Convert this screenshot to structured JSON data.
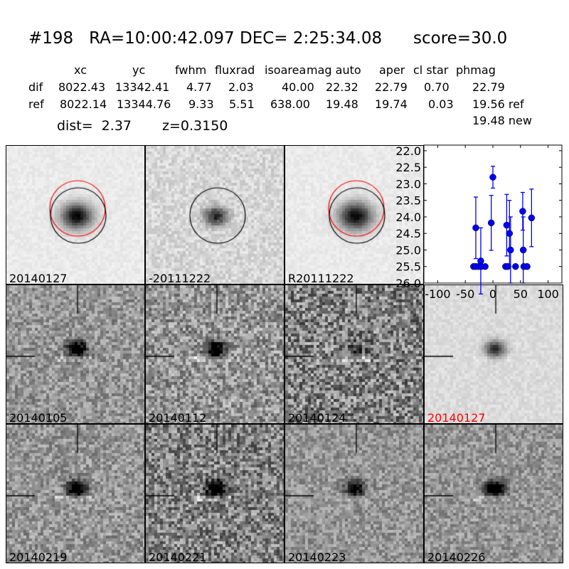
{
  "title": {
    "id": "#198",
    "coords": "RA=10:00:42.097 DEC= 2:25:34.08",
    "score": "score=30.0"
  },
  "table": {
    "headers": [
      "xc",
      "yc",
      "fwhm",
      "fluxrad",
      "isoarea",
      "mag auto",
      "aper",
      "cl star",
      "phmag"
    ],
    "rows": [
      {
        "label": "dif",
        "values": [
          "8022.43",
          "13342.41",
          "4.77",
          "2.03",
          "40.00",
          "22.32",
          "22.79",
          "0.70",
          "22.79"
        ]
      },
      {
        "label": "ref",
        "values": [
          "8022.14",
          "13344.76",
          "9.33",
          "5.51",
          "638.00",
          "19.48",
          "19.74",
          "0.03",
          "19.56 ref"
        ]
      }
    ],
    "extra": "19.48 new",
    "dist": "dist=  2.37",
    "z": "z=0.3150"
  },
  "cutouts": [
    {
      "label": "20140127",
      "color": "#000000"
    },
    {
      "label": "-20111222",
      "color": "#000000"
    },
    {
      "label": "R20111222",
      "color": "#000000"
    },
    {
      "label": "20140105",
      "color": "#000000"
    },
    {
      "label": "20140112",
      "color": "#000000"
    },
    {
      "label": "20140124",
      "color": "#000000"
    },
    {
      "label": "20140127",
      "color": "#ff0000"
    },
    {
      "label": "20140219",
      "color": "#000000"
    },
    {
      "label": "20140221",
      "color": "#000000"
    },
    {
      "label": "20140223",
      "color": "#000000"
    },
    {
      "label": "20140226",
      "color": "#000000"
    }
  ],
  "chart_data": {
    "type": "scatter",
    "errorbars": true,
    "color": "#0000ff",
    "xlim": [
      -125,
      125
    ],
    "ylim": [
      26.0,
      21.83
    ],
    "y_inverted": true,
    "xticks": [
      "-100",
      "-50",
      "0",
      "50",
      "100"
    ],
    "yticks": [
      "22.0",
      "22.5",
      "23.0",
      "23.5",
      "24.0",
      "24.5",
      "25.0",
      "25.5",
      "26.0"
    ],
    "points": [
      {
        "x": -31,
        "y": 24.33,
        "err": 0.93
      },
      {
        "x": -22,
        "y": 25.33,
        "err": 1.0
      },
      {
        "x": -35,
        "y": 25.5,
        "err": 0.05
      },
      {
        "x": -31,
        "y": 25.5,
        "err": 0.05
      },
      {
        "x": -26,
        "y": 25.5,
        "err": 0.05
      },
      {
        "x": -21,
        "y": 25.5,
        "err": 0.05
      },
      {
        "x": -14,
        "y": 25.5,
        "err": 0.05
      },
      {
        "x": 0,
        "y": 22.8,
        "err": 0.33
      },
      {
        "x": -3,
        "y": 24.18,
        "err": 0.83
      },
      {
        "x": 25,
        "y": 24.25,
        "err": 0.93
      },
      {
        "x": 30,
        "y": 24.5,
        "err": 1.0
      },
      {
        "x": 32,
        "y": 25.0,
        "err": 1.0
      },
      {
        "x": 23,
        "y": 25.5,
        "err": 0.05
      },
      {
        "x": 27,
        "y": 25.5,
        "err": 0.05
      },
      {
        "x": 41,
        "y": 25.5,
        "err": 0.05
      },
      {
        "x": 54,
        "y": 23.83,
        "err": 0.57
      },
      {
        "x": 55,
        "y": 25.0,
        "err": 1.0
      },
      {
        "x": 56,
        "y": 25.5,
        "err": 0.05
      },
      {
        "x": 62,
        "y": 25.5,
        "err": 0.05
      },
      {
        "x": 70,
        "y": 24.03,
        "err": 0.87
      }
    ]
  }
}
